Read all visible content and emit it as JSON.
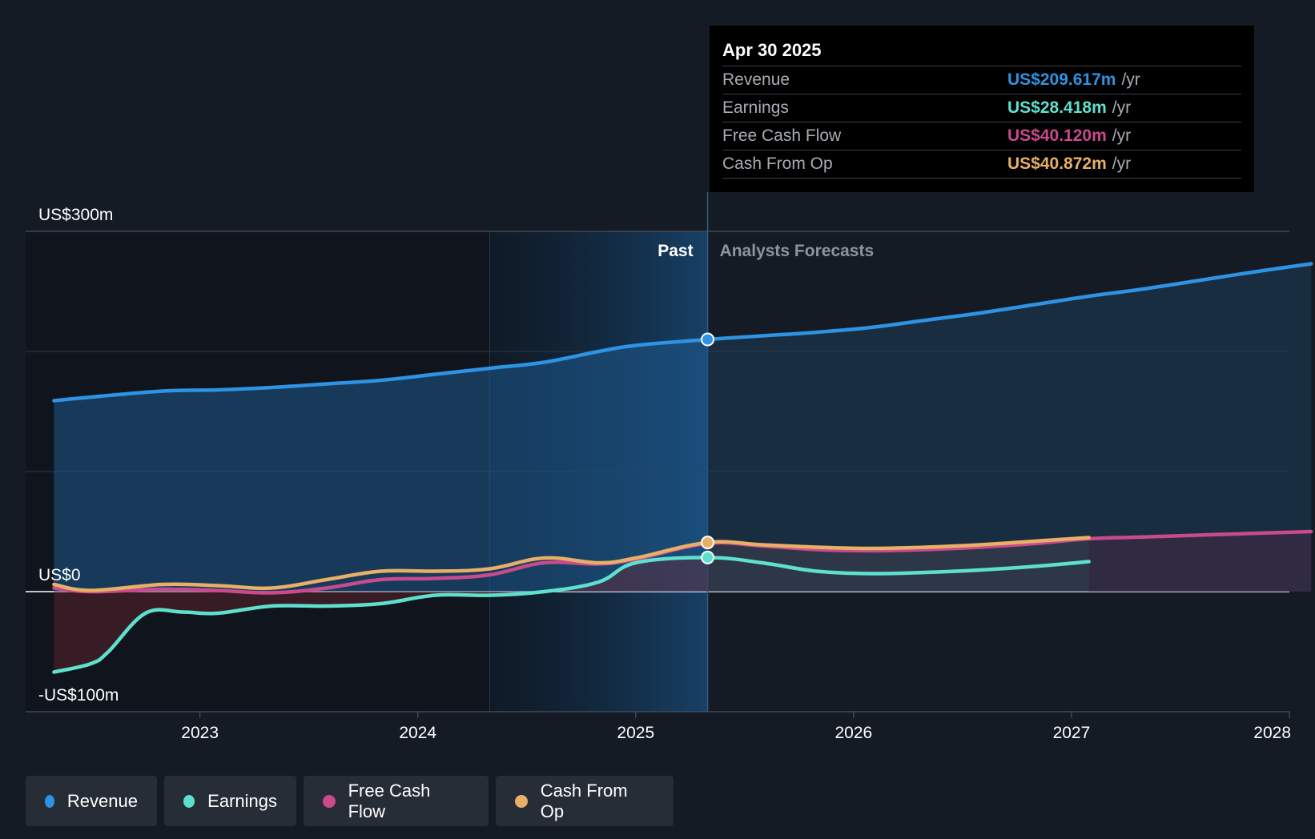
{
  "chart_data": {
    "type": "line",
    "x_unit": "year",
    "xlim": [
      2022.2,
      2028.0
    ],
    "ylim": [
      -100,
      300
    ],
    "y_labels": [
      {
        "value": 300,
        "label": "US$300m"
      },
      {
        "value": 0,
        "label": "US$0"
      },
      {
        "value": -100,
        "label": "-US$100m"
      }
    ],
    "gridlines": [
      300,
      200,
      100,
      0,
      -100
    ],
    "x_ticks": [
      {
        "value": 2023,
        "label": "2023"
      },
      {
        "value": 2024,
        "label": "2024"
      },
      {
        "value": 2025,
        "label": "2025"
      },
      {
        "value": 2026,
        "label": "2026"
      },
      {
        "value": 2027,
        "label": "2027"
      },
      {
        "value": 2028,
        "label": "2028"
      }
    ],
    "past_label": "Past",
    "forecast_label": "Analysts Forecasts",
    "divider_x": 2025.33,
    "highlight_start": 2024.33,
    "series": [
      {
        "name": "Revenue",
        "color": "#2e93e3",
        "points": [
          [
            2022.33,
            159
          ],
          [
            2022.5,
            162
          ],
          [
            2022.83,
            167
          ],
          [
            2023.08,
            168
          ],
          [
            2023.33,
            170
          ],
          [
            2023.58,
            173
          ],
          [
            2023.83,
            176
          ],
          [
            2024.08,
            181
          ],
          [
            2024.33,
            186
          ],
          [
            2024.58,
            191
          ],
          [
            2024.83,
            200
          ],
          [
            2025.0,
            205
          ],
          [
            2025.33,
            210
          ]
        ],
        "forecast": [
          [
            2025.33,
            210
          ],
          [
            2025.58,
            213
          ],
          [
            2025.83,
            216
          ],
          [
            2026.08,
            220
          ],
          [
            2026.33,
            226
          ],
          [
            2026.58,
            232
          ],
          [
            2026.83,
            239
          ],
          [
            2027.08,
            246
          ],
          [
            2027.33,
            252
          ],
          [
            2027.58,
            259
          ],
          [
            2027.83,
            266
          ],
          [
            2028.1,
            273
          ]
        ]
      },
      {
        "name": "Earnings",
        "color": "#5fe0cf",
        "points": [
          [
            2022.33,
            -67
          ],
          [
            2022.5,
            -60
          ],
          [
            2022.58,
            -50
          ],
          [
            2022.75,
            -18
          ],
          [
            2022.92,
            -17
          ],
          [
            2023.08,
            -18
          ],
          [
            2023.33,
            -12
          ],
          [
            2023.58,
            -12
          ],
          [
            2023.83,
            -10
          ],
          [
            2024.08,
            -3
          ],
          [
            2024.33,
            -3
          ],
          [
            2024.58,
            0
          ],
          [
            2024.83,
            8
          ],
          [
            2025.0,
            24
          ],
          [
            2025.33,
            28.4
          ]
        ],
        "forecast": [
          [
            2025.33,
            28.4
          ],
          [
            2025.58,
            24
          ],
          [
            2025.83,
            17
          ],
          [
            2026.08,
            15
          ],
          [
            2026.33,
            16
          ],
          [
            2026.58,
            18
          ],
          [
            2026.83,
            21
          ],
          [
            2027.08,
            25
          ]
        ]
      },
      {
        "name": "Free Cash Flow",
        "color": "#c94a8d",
        "points": [
          [
            2022.33,
            3
          ],
          [
            2022.5,
            0
          ],
          [
            2022.83,
            2
          ],
          [
            2023.08,
            1
          ],
          [
            2023.33,
            -1
          ],
          [
            2023.58,
            3
          ],
          [
            2023.83,
            10
          ],
          [
            2024.08,
            11
          ],
          [
            2024.33,
            14
          ],
          [
            2024.58,
            24
          ],
          [
            2024.83,
            23
          ],
          [
            2025.0,
            27
          ],
          [
            2025.33,
            40.1
          ]
        ],
        "forecast": [
          [
            2025.33,
            40.1
          ],
          [
            2025.58,
            38
          ],
          [
            2025.83,
            35
          ],
          [
            2026.08,
            34
          ],
          [
            2026.33,
            35
          ],
          [
            2026.58,
            37
          ],
          [
            2026.83,
            40
          ],
          [
            2027.08,
            44
          ],
          [
            2027.33,
            45.5
          ],
          [
            2027.58,
            47
          ],
          [
            2027.83,
            48.5
          ],
          [
            2028.1,
            50
          ]
        ]
      },
      {
        "name": "Cash From Op",
        "color": "#e8b066",
        "points": [
          [
            2022.33,
            6
          ],
          [
            2022.5,
            1
          ],
          [
            2022.83,
            6
          ],
          [
            2023.08,
            5
          ],
          [
            2023.33,
            3
          ],
          [
            2023.58,
            10
          ],
          [
            2023.83,
            17
          ],
          [
            2024.08,
            17
          ],
          [
            2024.33,
            19
          ],
          [
            2024.58,
            28
          ],
          [
            2024.83,
            24
          ],
          [
            2025.0,
            28
          ],
          [
            2025.33,
            40.9
          ]
        ],
        "forecast": [
          [
            2025.33,
            40.9
          ],
          [
            2025.58,
            39
          ],
          [
            2025.83,
            37
          ],
          [
            2026.08,
            36
          ],
          [
            2026.33,
            37
          ],
          [
            2026.58,
            39
          ],
          [
            2026.83,
            42
          ],
          [
            2027.08,
            45
          ]
        ]
      }
    ],
    "marker_x": 2025.33,
    "markers": [
      {
        "series": "Revenue",
        "y": 210
      },
      {
        "series": "Earnings",
        "y": 28.4
      },
      {
        "series": "Cash From Op",
        "y": 40.9
      }
    ]
  },
  "tooltip": {
    "date": "Apr 30 2025",
    "rows": [
      {
        "label": "Revenue",
        "value": "US$209.617m",
        "unit": "/yr",
        "color": "#2e93e3"
      },
      {
        "label": "Earnings",
        "value": "US$28.418m",
        "unit": "/yr",
        "color": "#5fe0cf"
      },
      {
        "label": "Free Cash Flow",
        "value": "US$40.120m",
        "unit": "/yr",
        "color": "#c94a8d"
      },
      {
        "label": "Cash From Op",
        "value": "US$40.872m",
        "unit": "/yr",
        "color": "#e8b066"
      }
    ]
  },
  "legend": [
    {
      "label": "Revenue",
      "color": "#2e93e3"
    },
    {
      "label": "Earnings",
      "color": "#5fe0cf"
    },
    {
      "label": "Free Cash Flow",
      "color": "#c94a8d"
    },
    {
      "label": "Cash From Op",
      "color": "#e8b066"
    }
  ]
}
